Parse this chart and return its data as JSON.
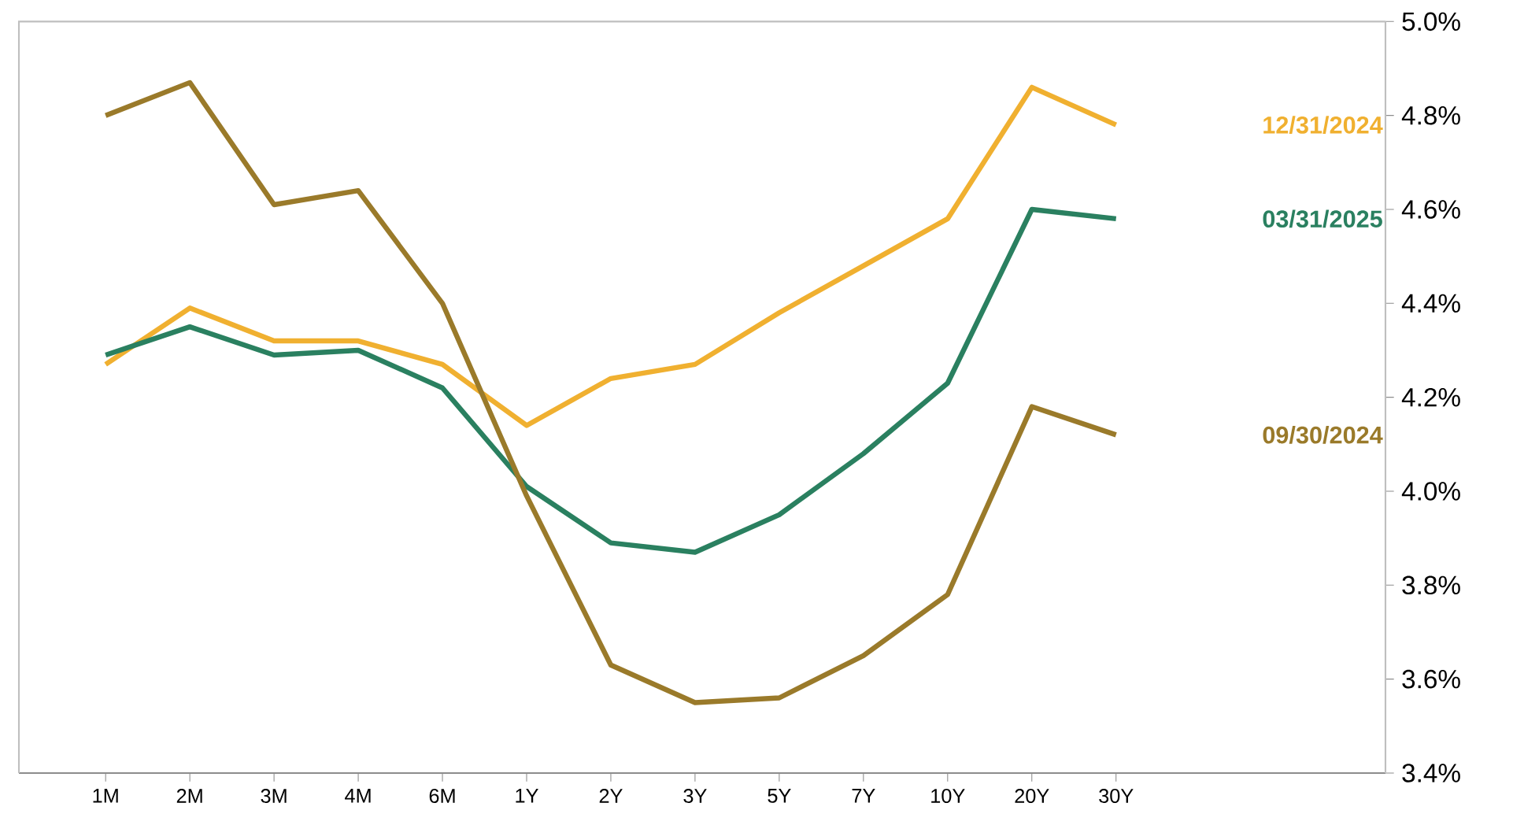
{
  "chart_data": {
    "type": "line",
    "categories": [
      "1M",
      "2M",
      "3M",
      "4M",
      "6M",
      "1Y",
      "2Y",
      "3Y",
      "5Y",
      "7Y",
      "10Y",
      "20Y",
      "30Y"
    ],
    "series": [
      {
        "name": "12/31/2024",
        "color": "#f0b030",
        "values": [
          4.27,
          4.39,
          4.32,
          4.32,
          4.27,
          4.14,
          4.24,
          4.27,
          4.38,
          4.48,
          4.58,
          4.86,
          4.78
        ]
      },
      {
        "name": "03/31/2025",
        "color": "#2a8060",
        "values": [
          4.29,
          4.35,
          4.29,
          4.3,
          4.22,
          4.01,
          3.89,
          3.87,
          3.95,
          4.08,
          4.23,
          4.6,
          4.58
        ]
      },
      {
        "name": "09/30/2024",
        "color": "#9a7a2a",
        "values": [
          4.8,
          4.87,
          4.61,
          4.64,
          4.4,
          3.99,
          3.63,
          3.55,
          3.56,
          3.65,
          3.78,
          4.18,
          4.12
        ]
      }
    ],
    "ylim": [
      3.4,
      5.0
    ],
    "yticks": [
      {
        "value": 3.4,
        "label": "3.4%"
      },
      {
        "value": 3.6,
        "label": "3.6%"
      },
      {
        "value": 3.8,
        "label": "3.8%"
      },
      {
        "value": 4.0,
        "label": "4.0%"
      },
      {
        "value": 4.2,
        "label": "4.2%"
      },
      {
        "value": 4.4,
        "label": "4.4%"
      },
      {
        "value": 4.6,
        "label": "4.6%"
      },
      {
        "value": 4.8,
        "label": "4.8%"
      },
      {
        "value": 5.0,
        "label": "5.0%"
      }
    ]
  }
}
